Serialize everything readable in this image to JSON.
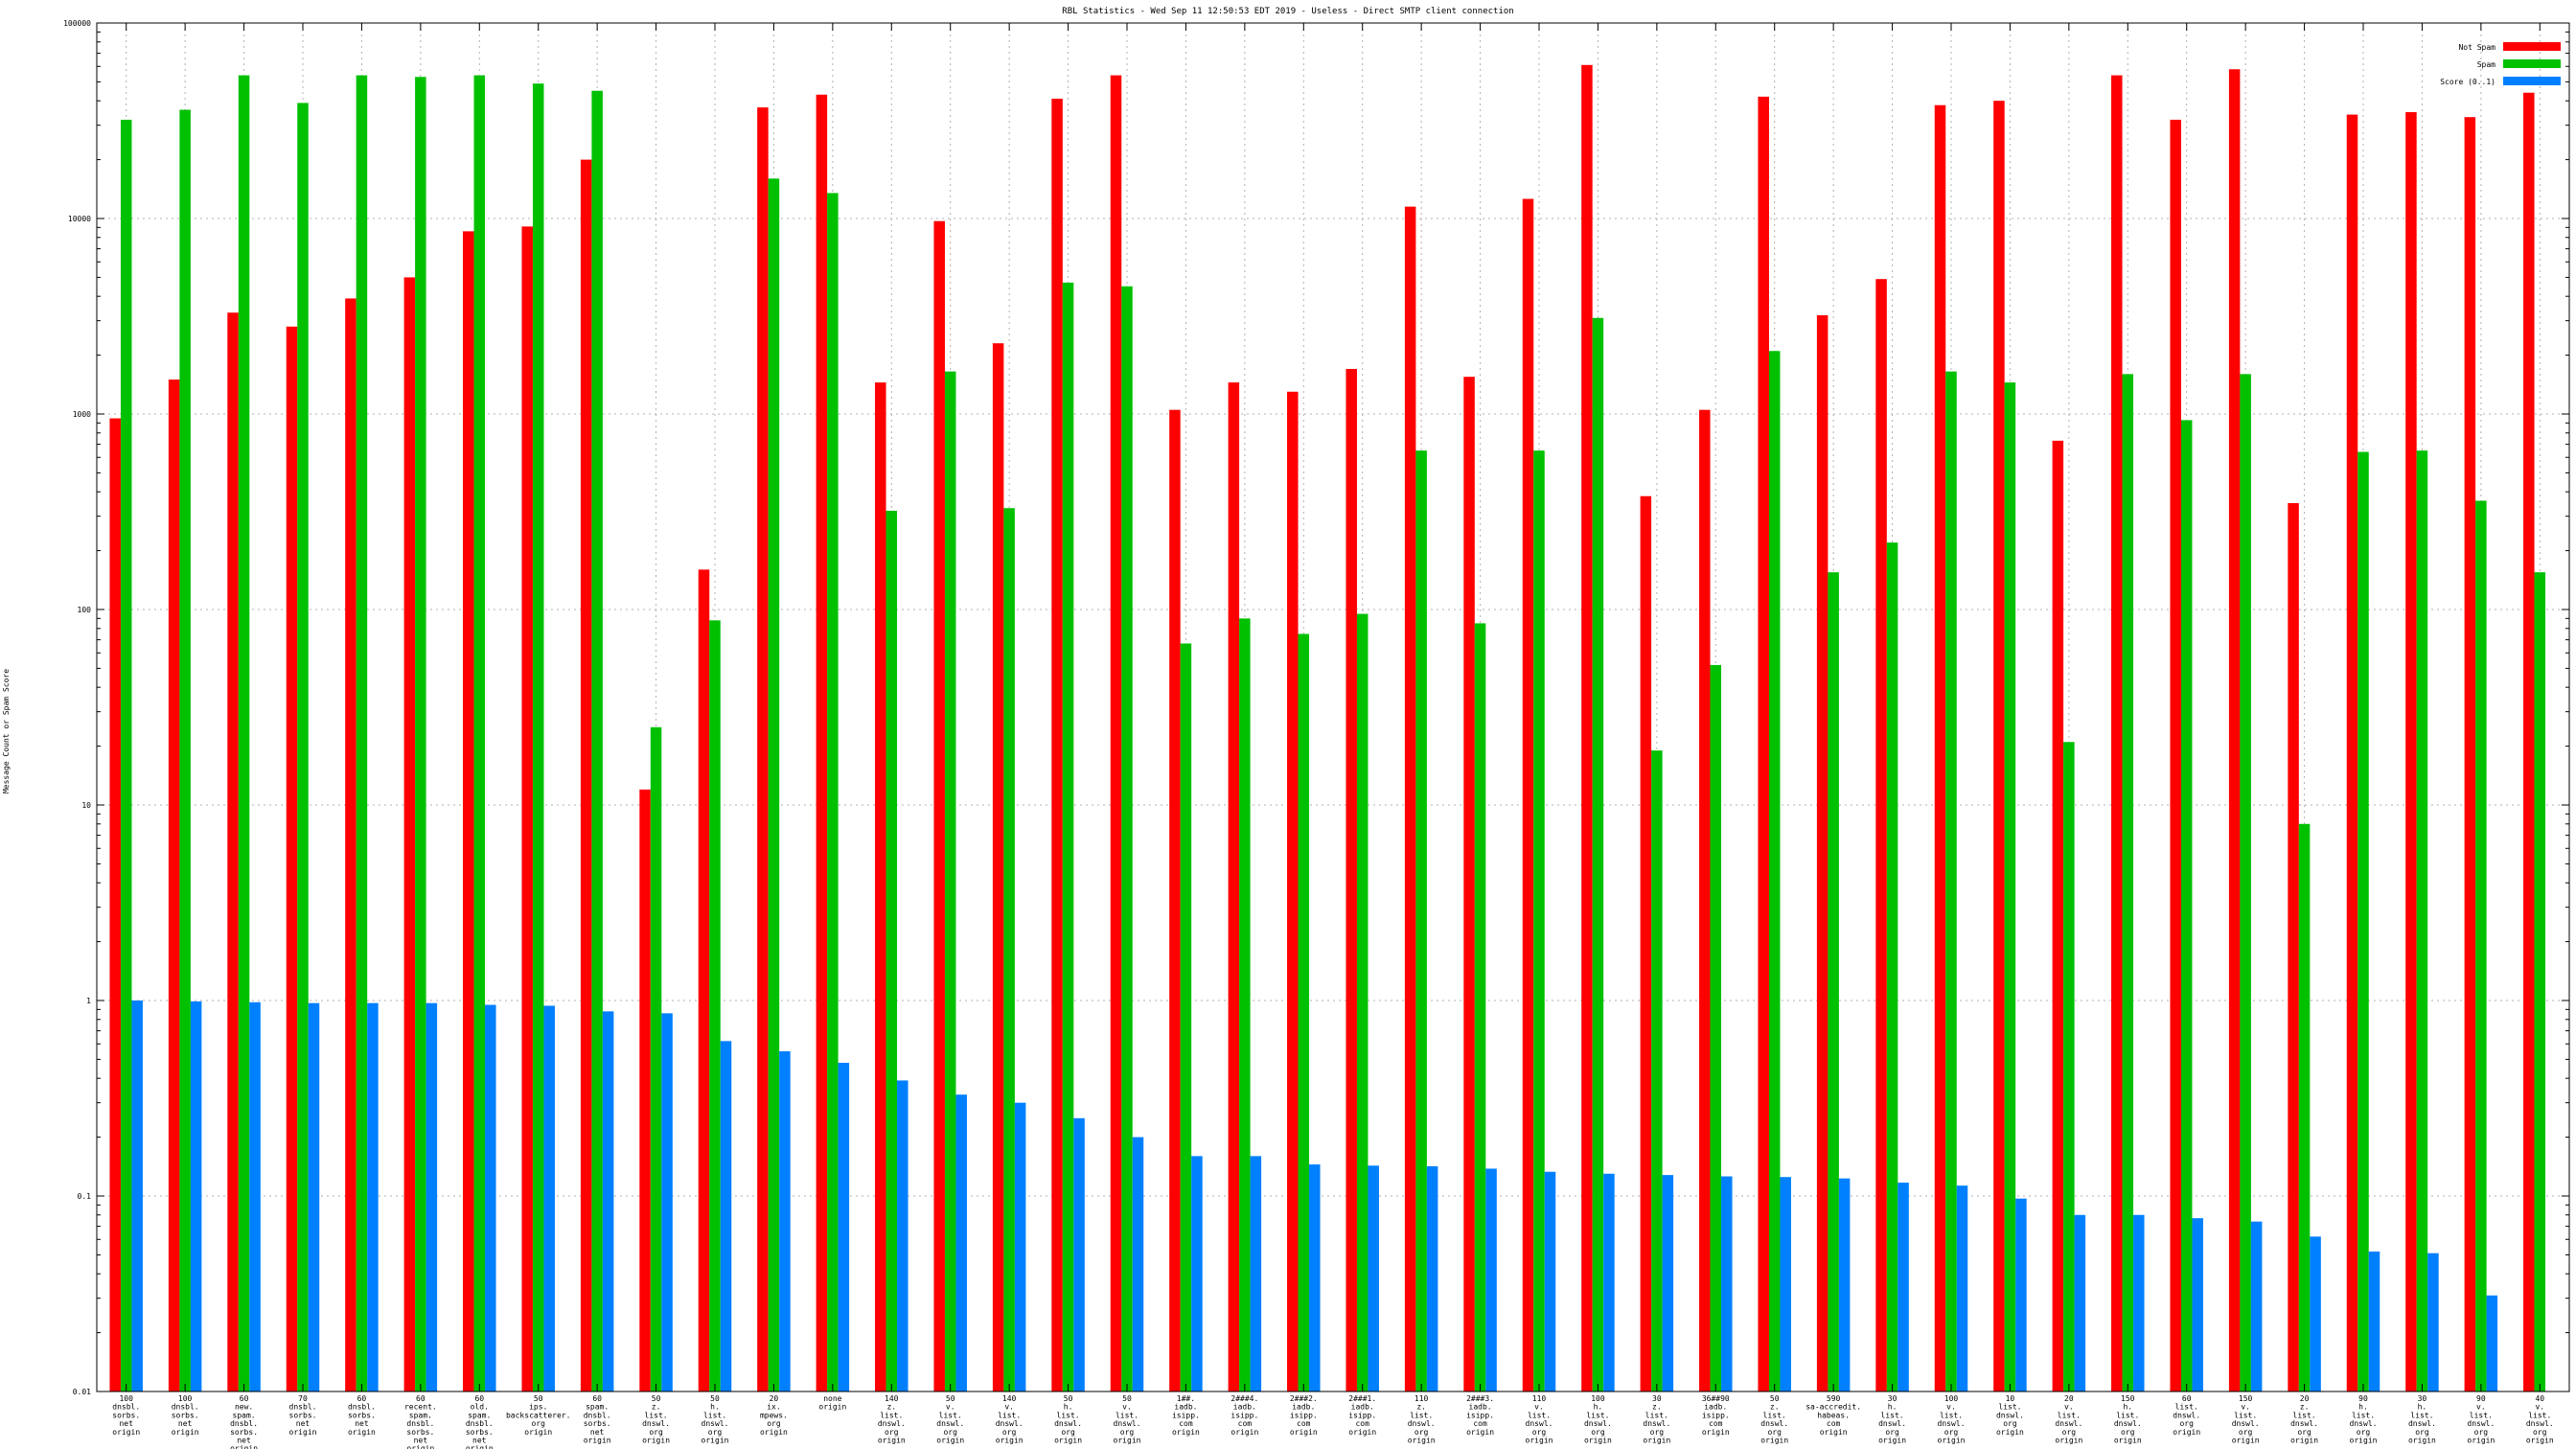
{
  "chart_data": {
    "type": "bar",
    "title": "RBL Statistics - Wed Sep 11 12:50:53 EDT 2019 - Useless - Direct SMTP client connection",
    "ylabel": "Message Count or Spam Score",
    "xlabel": "",
    "yscale": "log",
    "ylim": [
      0.01,
      100000
    ],
    "yticks": [
      "0.01",
      "0.1",
      "1",
      "10",
      "100",
      "1000",
      "10000",
      "100000"
    ],
    "grid": true,
    "legend_position": "top-right",
    "categories": [
      [
        "100",
        "dnsbl.",
        "sorbs.",
        "net",
        "origin"
      ],
      [
        "100",
        "dnsbl.",
        "sorbs.",
        "net",
        "origin"
      ],
      [
        "60",
        "new.",
        "spam.",
        "dnsbl.",
        "sorbs.",
        "net",
        "origin"
      ],
      [
        "70",
        "dnsbl.",
        "sorbs.",
        "net",
        "origin"
      ],
      [
        "60",
        "dnsbl.",
        "sorbs.",
        "net",
        "origin"
      ],
      [
        "60",
        "recent.",
        "spam.",
        "dnsbl.",
        "sorbs.",
        "net",
        "origin"
      ],
      [
        "60",
        "old.",
        "spam.",
        "dnsbl.",
        "sorbs.",
        "net",
        "origin"
      ],
      [
        "50",
        "ips.",
        "backscatterer.",
        "org",
        "origin"
      ],
      [
        "60",
        "spam.",
        "dnsbl.",
        "sorbs.",
        "net",
        "origin"
      ],
      [
        "50",
        "z.",
        "list.",
        "dnswl.",
        "org",
        "origin"
      ],
      [
        "50",
        "h.",
        "list.",
        "dnswl.",
        "org",
        "origin"
      ],
      [
        "20",
        "ix.",
        "mpews.",
        "org",
        "origin"
      ],
      [
        "none",
        "origin"
      ],
      [
        "140",
        "z.",
        "list.",
        "dnswl.",
        "org",
        "origin"
      ],
      [
        "50",
        "v.",
        "list.",
        "dnswl.",
        "org",
        "origin"
      ],
      [
        "140",
        "v.",
        "list.",
        "dnswl.",
        "org",
        "origin"
      ],
      [
        "50",
        "h.",
        "list.",
        "dnswl.",
        "org",
        "origin"
      ],
      [
        "50",
        "v.",
        "list.",
        "dnswl.",
        "org",
        "origin"
      ],
      [
        "1##.",
        "iadb.",
        "isipp.",
        "com",
        "origin"
      ],
      [
        "2###4.",
        "iadb.",
        "isipp.",
        "com",
        "origin"
      ],
      [
        "2###2.",
        "iadb.",
        "isipp.",
        "com",
        "origin"
      ],
      [
        "2###1.",
        "iadb.",
        "isipp.",
        "com",
        "origin"
      ],
      [
        "110",
        "z.",
        "list.",
        "dnswl.",
        "org",
        "origin"
      ],
      [
        "2###3.",
        "iadb.",
        "isipp.",
        "com",
        "origin"
      ],
      [
        "110",
        "v.",
        "list.",
        "dnswl.",
        "org",
        "origin"
      ],
      [
        "100",
        "h.",
        "list.",
        "dnswl.",
        "org",
        "origin"
      ],
      [
        "30",
        "z.",
        "list.",
        "dnswl.",
        "org",
        "origin"
      ],
      [
        "36##90",
        "iadb.",
        "isipp.",
        "com",
        "origin"
      ],
      [
        "50",
        "z.",
        "list.",
        "dnswl.",
        "org",
        "origin"
      ],
      [
        "590",
        "sa-accredit.",
        "habeas.",
        "com",
        "origin"
      ],
      [
        "30",
        "h.",
        "list.",
        "dnswl.",
        "org",
        "origin"
      ],
      [
        "100",
        "v.",
        "list.",
        "dnswl.",
        "org",
        "origin"
      ],
      [
        "10",
        "list.",
        "dnswl.",
        "org",
        "origin"
      ],
      [
        "20",
        "v.",
        "list.",
        "dnswl.",
        "org",
        "origin"
      ],
      [
        "150",
        "h.",
        "list.",
        "dnswl.",
        "org",
        "origin"
      ],
      [
        "60",
        "list.",
        "dnswl.",
        "org",
        "origin"
      ],
      [
        "150",
        "v.",
        "list.",
        "dnswl.",
        "org",
        "origin"
      ],
      [
        "20",
        "z.",
        "list.",
        "dnswl.",
        "org",
        "origin"
      ],
      [
        "90",
        "h.",
        "list.",
        "dnswl.",
        "org",
        "origin"
      ],
      [
        "30",
        "h.",
        "list.",
        "dnswl.",
        "org",
        "origin"
      ],
      [
        "90",
        "v.",
        "list.",
        "dnswl.",
        "org",
        "origin"
      ],
      [
        "40",
        "v.",
        "list.",
        "dnswl.",
        "org",
        "origin"
      ]
    ],
    "series": [
      {
        "name": "Not Spam",
        "color": "#ff0000",
        "values": [
          950,
          1500,
          3300,
          2800,
          3900,
          5000,
          8600,
          9100,
          20000,
          12,
          160,
          37000,
          43000,
          1450,
          9700,
          2300,
          41000,
          54000,
          1050,
          1450,
          1300,
          1700,
          11500,
          1550,
          12600,
          61000,
          380,
          1050,
          42000,
          3200,
          4900,
          38000,
          40000,
          730,
          54000,
          32000,
          58000,
          350,
          34000,
          35000,
          33000,
          44000
        ]
      },
      {
        "name": "Spam",
        "color": "#00c000",
        "values": [
          32000,
          36000,
          54000,
          39000,
          54000,
          53000,
          54000,
          49000,
          45000,
          25,
          88,
          16000,
          13500,
          320,
          1650,
          330,
          4700,
          4500,
          67,
          90,
          75,
          95,
          650,
          85,
          650,
          3100,
          19,
          52,
          2100,
          155,
          220,
          1650,
          1450,
          21,
          1600,
          930,
          1600,
          8,
          640,
          650,
          360,
          155
        ]
      },
      {
        "name": "Score (0..1)",
        "color": "#0080ff",
        "values": [
          1.0,
          0.99,
          0.98,
          0.97,
          0.97,
          0.97,
          0.95,
          0.94,
          0.88,
          0.86,
          0.62,
          0.55,
          0.48,
          0.39,
          0.33,
          0.3,
          0.25,
          0.2,
          0.16,
          0.16,
          0.145,
          0.143,
          0.142,
          0.138,
          0.133,
          0.13,
          0.128,
          0.126,
          0.125,
          0.123,
          0.117,
          0.113,
          0.097,
          0.08,
          0.08,
          0.077,
          0.074,
          0.062,
          0.052,
          0.051,
          0.031,
          0
        ]
      }
    ]
  }
}
